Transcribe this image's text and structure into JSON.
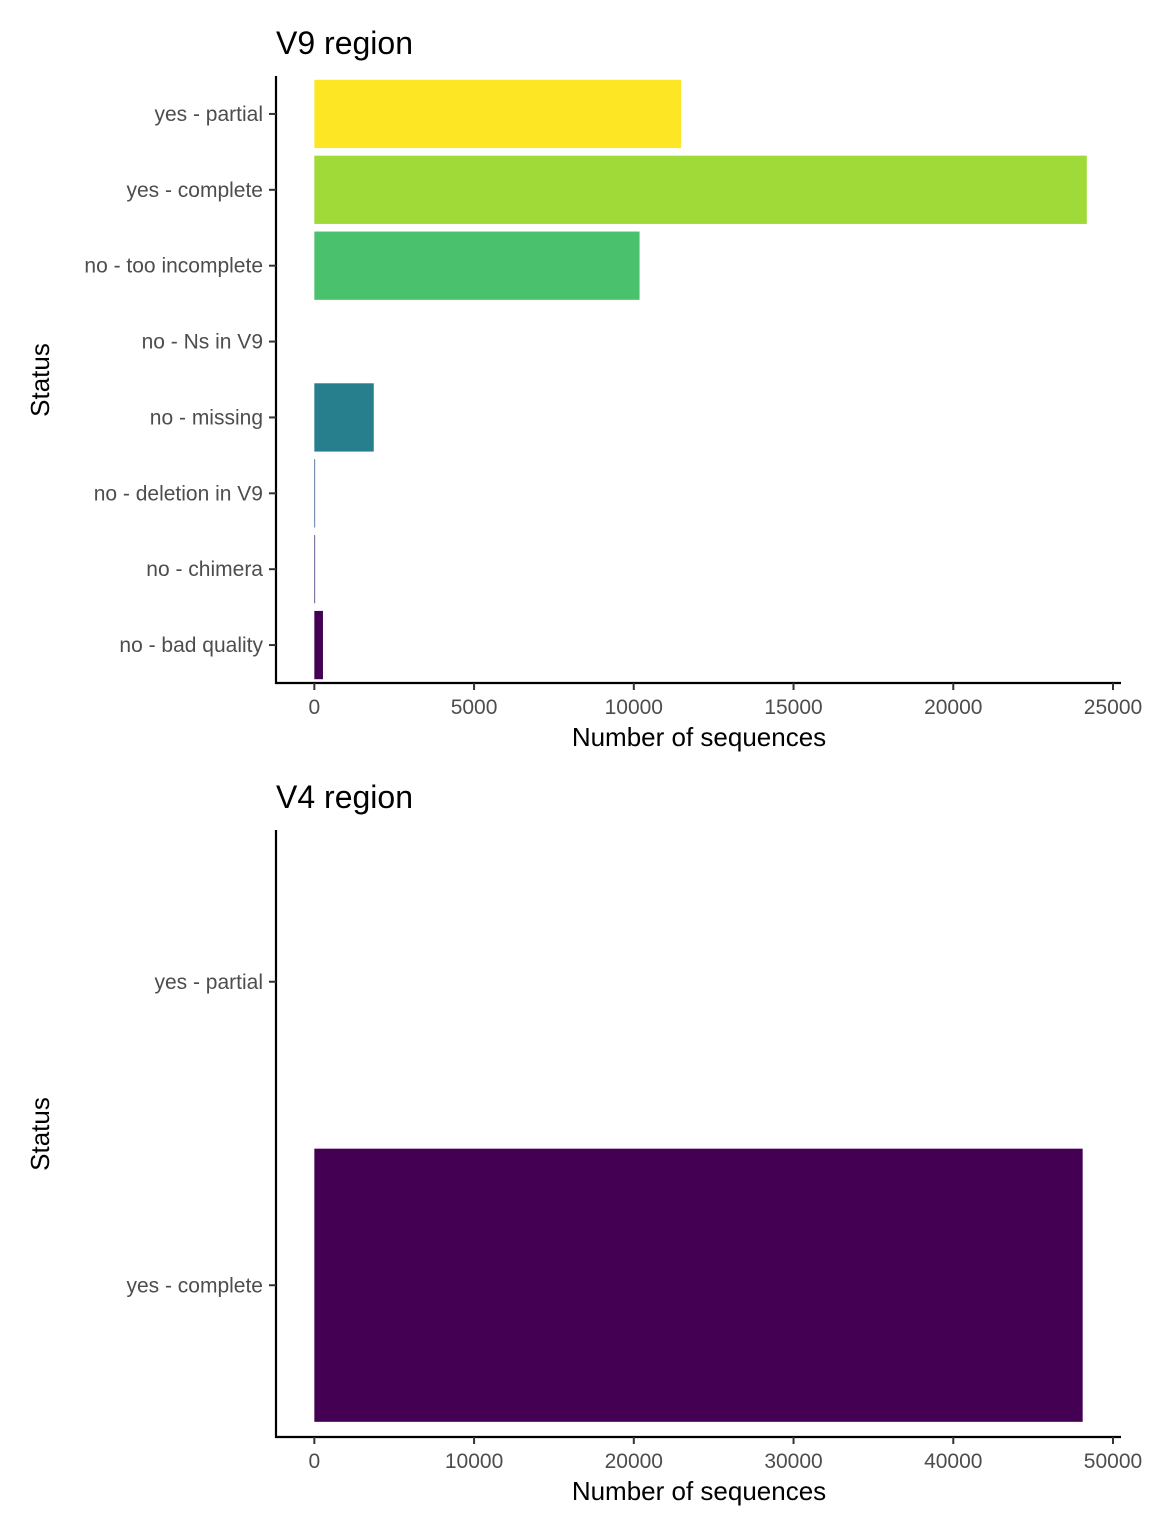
{
  "chart_data": [
    {
      "type": "bar",
      "orientation": "horizontal",
      "title": "V9 region",
      "xlabel": "Number of sequences",
      "ylabel": "Status",
      "categories": [
        "no - bad quality",
        "no - chimera",
        "no - deletion in V9",
        "no - missing",
        "no - Ns in V9",
        "no - too incomplete",
        "yes - complete",
        "yes - partial"
      ],
      "values": [
        270,
        20,
        20,
        1860,
        0,
        10180,
        24180,
        11480
      ],
      "colors": [
        "#440154",
        "#46337E",
        "#365C8D",
        "#277F8E",
        "#1FA187",
        "#4AC16D",
        "#A0DA39",
        "#FDE725"
      ],
      "xlim": [
        -1200,
        25250
      ],
      "xticks": [
        0,
        5000,
        10000,
        15000,
        20000,
        25000
      ],
      "grid": false,
      "legend": "none"
    },
    {
      "type": "bar",
      "orientation": "horizontal",
      "title": "V4 region",
      "xlabel": "Number of sequences",
      "ylabel": "Status",
      "categories": [
        "yes - complete",
        "yes - partial"
      ],
      "values": [
        48100,
        0
      ],
      "colors": [
        "#440154",
        "#FDE725"
      ],
      "xlim": [
        -2400,
        50500
      ],
      "xticks": [
        0,
        10000,
        20000,
        30000,
        40000,
        50000
      ],
      "grid": false,
      "legend": "none"
    }
  ]
}
